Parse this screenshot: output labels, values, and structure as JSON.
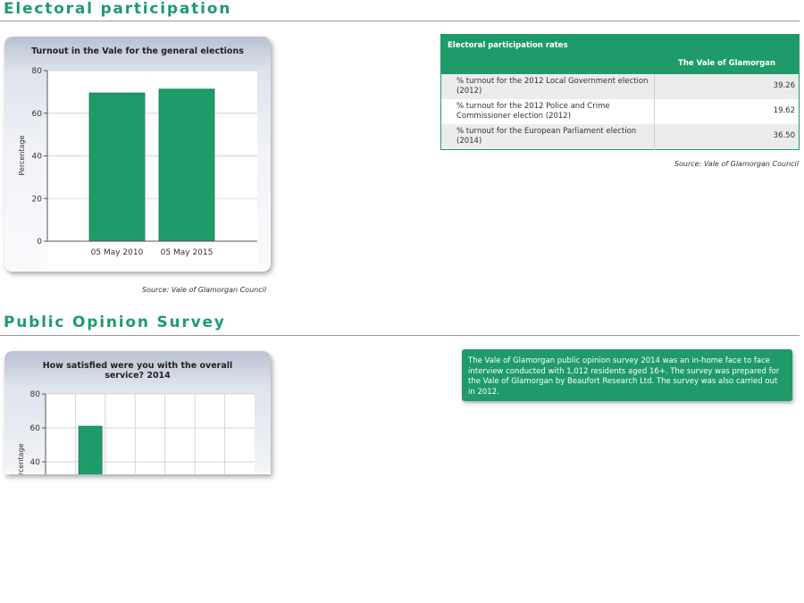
{
  "sections": {
    "electoral": {
      "title": "Electoral participation"
    },
    "survey": {
      "title": "Public Opinion Survey"
    }
  },
  "turnout_chart": {
    "title": "Turnout in the Vale for the general elections",
    "source": "Source: Vale of Glamorgan Council",
    "bar_color": "#1f9b6b"
  },
  "rates_table": {
    "caption": "Electoral participation rates",
    "column_header": "The Vale of Glamorgan",
    "rows": [
      {
        "label": "% turnout for the 2012 Local Government election (2012)",
        "value": "39.26"
      },
      {
        "label": "% turnout for the 2012 Police and Crime Commissioner election (2012)",
        "value": "19.62"
      },
      {
        "label": "% turnout for the European Parliament election (2014)",
        "value": "36.50"
      }
    ],
    "source": "Source: Vale of Glamorgan Council"
  },
  "satisfaction_chart": {
    "title": "How satisfied were you with the overall service? 2014",
    "bar_color": "#1f9b6b"
  },
  "survey_info": {
    "text": "The Vale of Glamorgan public opinion survey 2014 was an in-home face to face interview conducted with 1,012 residents aged 16+. The survey was prepared for the Vale of Glamorgan by Beaufort Research Ltd. The survey was also carried out in 2012."
  },
  "colors": {
    "accent": "#1f9b6b",
    "rule": "#9a9a9a"
  },
  "chart_data": [
    {
      "type": "bar",
      "title": "Turnout in the Vale for the general elections",
      "categories": [
        "05 May 2010",
        "05 May 2015"
      ],
      "values": [
        69.5,
        71.3
      ],
      "xlabel": "",
      "ylabel": "Percentage",
      "ylim": [
        0,
        80
      ],
      "yticks": [
        0,
        20,
        40,
        60,
        80
      ],
      "grid": true
    },
    {
      "type": "bar",
      "title": "How satisfied were you with the overall service? 2014",
      "categories": [
        "",
        "",
        "",
        "",
        "",
        "",
        ""
      ],
      "values": [
        null,
        61,
        null,
        null,
        null,
        null,
        null
      ],
      "xlabel": "",
      "ylabel": "Percentage",
      "ylim": [
        0,
        80
      ],
      "yticks": [
        40,
        60,
        80
      ],
      "grid": true
    }
  ]
}
